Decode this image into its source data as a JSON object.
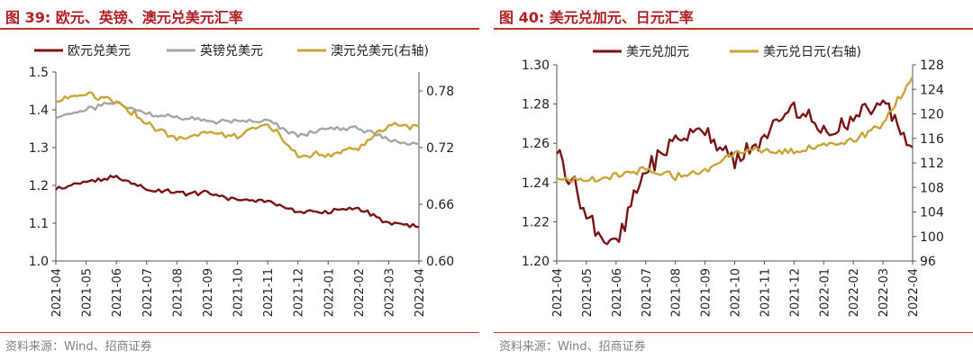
{
  "chart_data": [
    {
      "type": "line",
      "title": "图 39: 欧元、英镑、澳元兑美元汇率",
      "source": "资料来源：Wind、招商证券",
      "x": [
        "2021-04",
        "2021-05",
        "2021-06",
        "2021-07",
        "2021-08",
        "2021-09",
        "2021-10",
        "2021-11",
        "2021-12",
        "2022-01",
        "2022-02",
        "2022-03",
        "2022-04"
      ],
      "ylim": [
        1.0,
        1.5
      ],
      "yticks": [
        "1.5",
        "1.4",
        "1.3",
        "1.2",
        "1.1",
        "1.0"
      ],
      "y2lim": [
        0.6,
        0.8
      ],
      "y2ticks": [
        "0.78",
        "0.72",
        "0.66",
        "0.60"
      ],
      "series": [
        {
          "name": "欧元兑美元",
          "axis": "left",
          "color": "#7b1416",
          "values": [
            1.19,
            1.21,
            1.22,
            1.19,
            1.18,
            1.18,
            1.16,
            1.16,
            1.13,
            1.13,
            1.14,
            1.1,
            1.09
          ]
        },
        {
          "name": "英镑兑美元",
          "axis": "left",
          "color": "#a6a6a6",
          "values": [
            1.38,
            1.4,
            1.42,
            1.39,
            1.38,
            1.37,
            1.37,
            1.37,
            1.33,
            1.35,
            1.35,
            1.32,
            1.31
          ]
        },
        {
          "name": "澳元兑美元(右轴)",
          "axis": "right",
          "color": "#c9a437",
          "values": [
            0.77,
            0.777,
            0.77,
            0.745,
            0.73,
            0.736,
            0.731,
            0.746,
            0.712,
            0.712,
            0.72,
            0.745,
            0.742
          ]
        }
      ]
    },
    {
      "type": "line",
      "title": "图 40: 美元兑加元、日元汇率",
      "source": "资料来源：Wind、招商证券",
      "x": [
        "2021-04",
        "2021-05",
        "2021-06",
        "2021-07",
        "2021-08",
        "2021-09",
        "2021-10",
        "2021-11",
        "2021-12",
        "2022-01",
        "2022-02",
        "2022-03",
        "2022-04"
      ],
      "ylim": [
        1.2,
        1.3
      ],
      "yticks": [
        "1.30",
        "1.28",
        "1.26",
        "1.24",
        "1.22",
        "1.20"
      ],
      "y2lim": [
        96,
        128
      ],
      "y2ticks": [
        "128",
        "124",
        "120",
        "116",
        "112",
        "108",
        "104",
        "100",
        "96"
      ],
      "series": [
        {
          "name": "美元兑加元",
          "axis": "left",
          "color": "#7b1416",
          "values": [
            1.258,
            1.223,
            1.207,
            1.245,
            1.262,
            1.268,
            1.25,
            1.262,
            1.281,
            1.264,
            1.272,
            1.282,
            1.258
          ]
        },
        {
          "name": "美元兑日元(右轴)",
          "axis": "right",
          "color": "#c9a437",
          "values": [
            109.8,
            108.9,
            109.8,
            110.7,
            109.8,
            110.5,
            113.9,
            114.0,
            113.6,
            115.1,
            115.4,
            118.5,
            126.0
          ]
        }
      ]
    }
  ]
}
